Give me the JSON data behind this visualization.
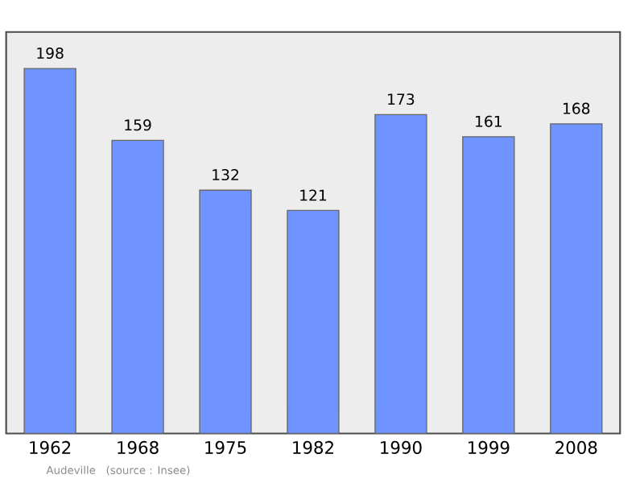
{
  "chart_data": {
    "type": "bar",
    "categories": [
      "1962",
      "1968",
      "1975",
      "1982",
      "1990",
      "1999",
      "2008"
    ],
    "values": [
      198,
      159,
      132,
      121,
      173,
      161,
      168
    ],
    "color": "#7094ff",
    "data_labels": true,
    "annotations": [
      "Audeville",
      "(source : Insee)"
    ]
  }
}
